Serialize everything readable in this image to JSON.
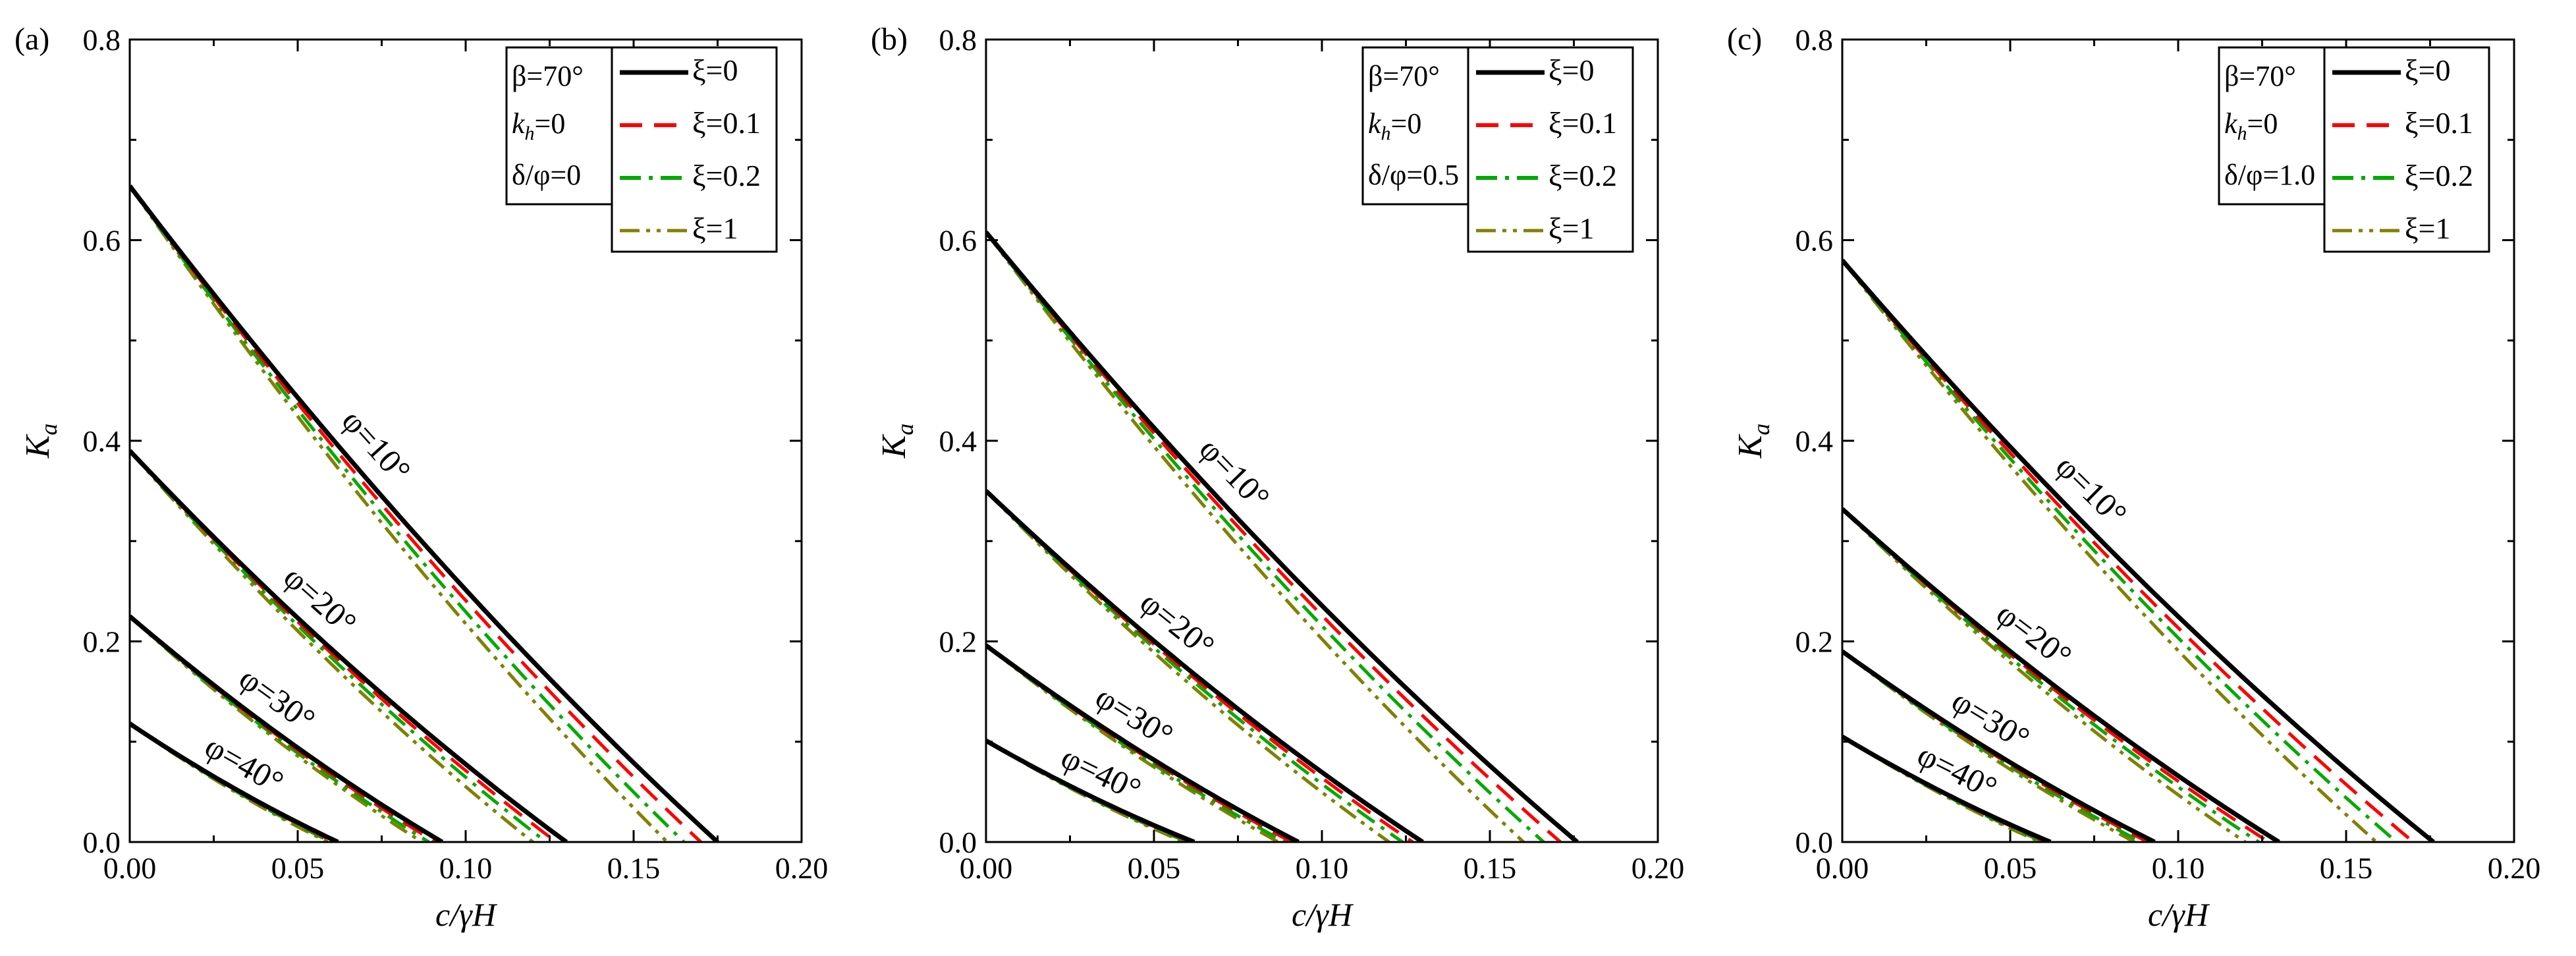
{
  "chart_data": [
    {
      "type": "line",
      "panel_label": "(a)",
      "xlabel": "c/γH",
      "ylabel": "K",
      "ylabel_sub": "a",
      "xlim": [
        0,
        0.2
      ],
      "ylim": [
        0,
        0.8
      ],
      "xticks": [
        "0.00",
        "0.05",
        "0.10",
        "0.15",
        "0.20"
      ],
      "yticks": [
        "0.0",
        "0.2",
        "0.4",
        "0.6",
        "0.8"
      ],
      "params": {
        "beta": "β=70°",
        "kh_sym": "k",
        "kh_sub": "h",
        "kh_val": "=0",
        "delta": "δ/φ=0"
      },
      "legend": [
        {
          "label": "ξ=0",
          "color": "#000000"
        },
        {
          "label": "ξ=0.1",
          "color": "#ff0000"
        },
        {
          "label": "ξ=0.2",
          "color": "#00aa00"
        },
        {
          "label": "ξ=1",
          "color": "#808000"
        }
      ],
      "annotations": [
        "φ=10°",
        "φ=20°",
        "φ=30°",
        "φ=40°"
      ],
      "curves": [
        {
          "phi": "φ=10°",
          "k0": 0.654,
          "zeros": [
            0.175,
            0.17,
            0.165,
            0.16
          ]
        },
        {
          "phi": "φ=20°",
          "k0": 0.39,
          "zeros": [
            0.13,
            0.127,
            0.124,
            0.12
          ]
        },
        {
          "phi": "φ=30°",
          "k0": 0.225,
          "zeros": [
            0.093,
            0.091,
            0.089,
            0.087
          ]
        },
        {
          "phi": "φ=40°",
          "k0": 0.118,
          "zeros": [
            0.062,
            0.061,
            0.06,
            0.059
          ]
        }
      ]
    },
    {
      "type": "line",
      "panel_label": "(b)",
      "xlabel": "c/γH",
      "ylabel": "K",
      "ylabel_sub": "a",
      "xlim": [
        0,
        0.2
      ],
      "ylim": [
        0,
        0.8
      ],
      "xticks": [
        "0.00",
        "0.05",
        "0.10",
        "0.15",
        "0.20"
      ],
      "yticks": [
        "0.0",
        "0.2",
        "0.4",
        "0.6",
        "0.8"
      ],
      "params": {
        "beta": "β=70°",
        "kh_sym": "k",
        "kh_sub": "h",
        "kh_val": "=0",
        "delta": "δ/φ=0.5"
      },
      "legend": [
        {
          "label": "ξ=0",
          "color": "#000000"
        },
        {
          "label": "ξ=0.1",
          "color": "#ff0000"
        },
        {
          "label": "ξ=0.2",
          "color": "#00aa00"
        },
        {
          "label": "ξ=1",
          "color": "#808000"
        }
      ],
      "annotations": [
        "φ=10°",
        "φ=20°",
        "φ=30°",
        "φ=40°"
      ],
      "curves": [
        {
          "phi": "φ=10°",
          "k0": 0.608,
          "zeros": [
            0.176,
            0.171,
            0.166,
            0.16
          ]
        },
        {
          "phi": "φ=20°",
          "k0": 0.35,
          "zeros": [
            0.13,
            0.127,
            0.124,
            0.12
          ]
        },
        {
          "phi": "φ=30°",
          "k0": 0.196,
          "zeros": [
            0.093,
            0.091,
            0.089,
            0.087
          ]
        },
        {
          "phi": "φ=40°",
          "k0": 0.101,
          "zeros": [
            0.062,
            0.061,
            0.06,
            0.059
          ]
        }
      ]
    },
    {
      "type": "line",
      "panel_label": "(c)",
      "xlabel": "c/γH",
      "ylabel": "K",
      "ylabel_sub": "a",
      "xlim": [
        0,
        0.2
      ],
      "ylim": [
        0,
        0.8
      ],
      "xticks": [
        "0.00",
        "0.05",
        "0.10",
        "0.15",
        "0.20"
      ],
      "yticks": [
        "0.0",
        "0.2",
        "0.4",
        "0.6",
        "0.8"
      ],
      "params": {
        "beta": "β=70°",
        "kh_sym": "k",
        "kh_sub": "h",
        "kh_val": "=0",
        "delta": "δ/φ=1.0"
      },
      "legend": [
        {
          "label": "ξ=0",
          "color": "#000000"
        },
        {
          "label": "ξ=0.1",
          "color": "#ff0000"
        },
        {
          "label": "ξ=0.2",
          "color": "#00aa00"
        },
        {
          "label": "ξ=1",
          "color": "#808000"
        }
      ],
      "annotations": [
        "φ=10°",
        "φ=20°",
        "φ=30°",
        "φ=40°"
      ],
      "curves": [
        {
          "phi": "φ=10°",
          "k0": 0.58,
          "zeros": [
            0.176,
            0.17,
            0.165,
            0.159
          ]
        },
        {
          "phi": "φ=20°",
          "k0": 0.332,
          "zeros": [
            0.13,
            0.127,
            0.124,
            0.12
          ]
        },
        {
          "phi": "φ=30°",
          "k0": 0.19,
          "zeros": [
            0.093,
            0.091,
            0.089,
            0.087
          ]
        },
        {
          "phi": "φ=40°",
          "k0": 0.105,
          "zeros": [
            0.062,
            0.061,
            0.06,
            0.059
          ]
        }
      ]
    }
  ]
}
